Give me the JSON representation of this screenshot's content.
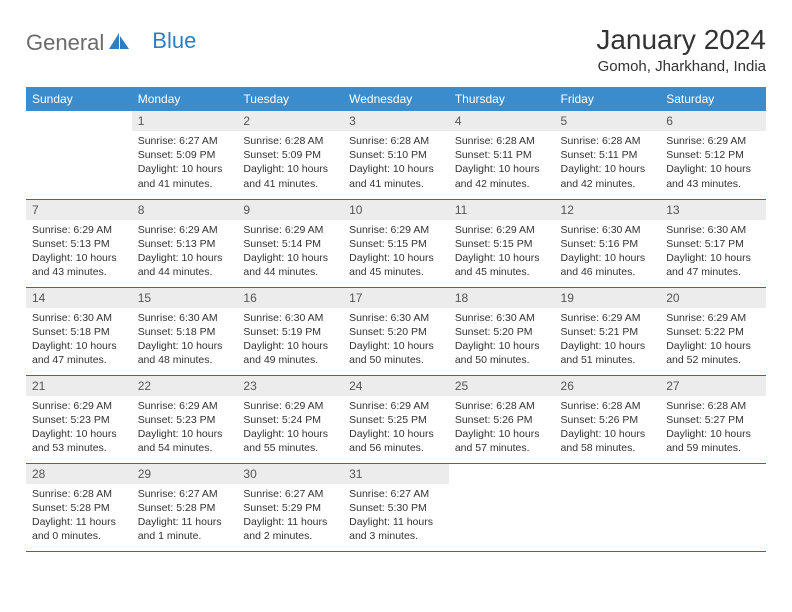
{
  "logo": {
    "text1": "General",
    "text2": "Blue"
  },
  "title": "January 2024",
  "location": "Gomoh, Jharkhand, India",
  "colors": {
    "header_bg": "#3b8ccc",
    "header_text": "#ffffff",
    "daynum_bg": "#ececec",
    "row_border": "#2d6fa3",
    "logo_gray": "#6b6b6b",
    "logo_blue": "#2d7fc1"
  },
  "weekdays": [
    "Sunday",
    "Monday",
    "Tuesday",
    "Wednesday",
    "Thursday",
    "Friday",
    "Saturday"
  ],
  "weeks": [
    [
      null,
      {
        "n": "1",
        "sr": "6:27 AM",
        "ss": "5:09 PM",
        "dl": "10 hours and 41 minutes."
      },
      {
        "n": "2",
        "sr": "6:28 AM",
        "ss": "5:09 PM",
        "dl": "10 hours and 41 minutes."
      },
      {
        "n": "3",
        "sr": "6:28 AM",
        "ss": "5:10 PM",
        "dl": "10 hours and 41 minutes."
      },
      {
        "n": "4",
        "sr": "6:28 AM",
        "ss": "5:11 PM",
        "dl": "10 hours and 42 minutes."
      },
      {
        "n": "5",
        "sr": "6:28 AM",
        "ss": "5:11 PM",
        "dl": "10 hours and 42 minutes."
      },
      {
        "n": "6",
        "sr": "6:29 AM",
        "ss": "5:12 PM",
        "dl": "10 hours and 43 minutes."
      }
    ],
    [
      {
        "n": "7",
        "sr": "6:29 AM",
        "ss": "5:13 PM",
        "dl": "10 hours and 43 minutes."
      },
      {
        "n": "8",
        "sr": "6:29 AM",
        "ss": "5:13 PM",
        "dl": "10 hours and 44 minutes."
      },
      {
        "n": "9",
        "sr": "6:29 AM",
        "ss": "5:14 PM",
        "dl": "10 hours and 44 minutes."
      },
      {
        "n": "10",
        "sr": "6:29 AM",
        "ss": "5:15 PM",
        "dl": "10 hours and 45 minutes."
      },
      {
        "n": "11",
        "sr": "6:29 AM",
        "ss": "5:15 PM",
        "dl": "10 hours and 45 minutes."
      },
      {
        "n": "12",
        "sr": "6:30 AM",
        "ss": "5:16 PM",
        "dl": "10 hours and 46 minutes."
      },
      {
        "n": "13",
        "sr": "6:30 AM",
        "ss": "5:17 PM",
        "dl": "10 hours and 47 minutes."
      }
    ],
    [
      {
        "n": "14",
        "sr": "6:30 AM",
        "ss": "5:18 PM",
        "dl": "10 hours and 47 minutes."
      },
      {
        "n": "15",
        "sr": "6:30 AM",
        "ss": "5:18 PM",
        "dl": "10 hours and 48 minutes."
      },
      {
        "n": "16",
        "sr": "6:30 AM",
        "ss": "5:19 PM",
        "dl": "10 hours and 49 minutes."
      },
      {
        "n": "17",
        "sr": "6:30 AM",
        "ss": "5:20 PM",
        "dl": "10 hours and 50 minutes."
      },
      {
        "n": "18",
        "sr": "6:30 AM",
        "ss": "5:20 PM",
        "dl": "10 hours and 50 minutes."
      },
      {
        "n": "19",
        "sr": "6:29 AM",
        "ss": "5:21 PM",
        "dl": "10 hours and 51 minutes."
      },
      {
        "n": "20",
        "sr": "6:29 AM",
        "ss": "5:22 PM",
        "dl": "10 hours and 52 minutes."
      }
    ],
    [
      {
        "n": "21",
        "sr": "6:29 AM",
        "ss": "5:23 PM",
        "dl": "10 hours and 53 minutes."
      },
      {
        "n": "22",
        "sr": "6:29 AM",
        "ss": "5:23 PM",
        "dl": "10 hours and 54 minutes."
      },
      {
        "n": "23",
        "sr": "6:29 AM",
        "ss": "5:24 PM",
        "dl": "10 hours and 55 minutes."
      },
      {
        "n": "24",
        "sr": "6:29 AM",
        "ss": "5:25 PM",
        "dl": "10 hours and 56 minutes."
      },
      {
        "n": "25",
        "sr": "6:28 AM",
        "ss": "5:26 PM",
        "dl": "10 hours and 57 minutes."
      },
      {
        "n": "26",
        "sr": "6:28 AM",
        "ss": "5:26 PM",
        "dl": "10 hours and 58 minutes."
      },
      {
        "n": "27",
        "sr": "6:28 AM",
        "ss": "5:27 PM",
        "dl": "10 hours and 59 minutes."
      }
    ],
    [
      {
        "n": "28",
        "sr": "6:28 AM",
        "ss": "5:28 PM",
        "dl": "11 hours and 0 minutes."
      },
      {
        "n": "29",
        "sr": "6:27 AM",
        "ss": "5:28 PM",
        "dl": "11 hours and 1 minute."
      },
      {
        "n": "30",
        "sr": "6:27 AM",
        "ss": "5:29 PM",
        "dl": "11 hours and 2 minutes."
      },
      {
        "n": "31",
        "sr": "6:27 AM",
        "ss": "5:30 PM",
        "dl": "11 hours and 3 minutes."
      },
      null,
      null,
      null
    ]
  ],
  "labels": {
    "sunrise": "Sunrise: ",
    "sunset": "Sunset: ",
    "daylight": "Daylight: "
  }
}
